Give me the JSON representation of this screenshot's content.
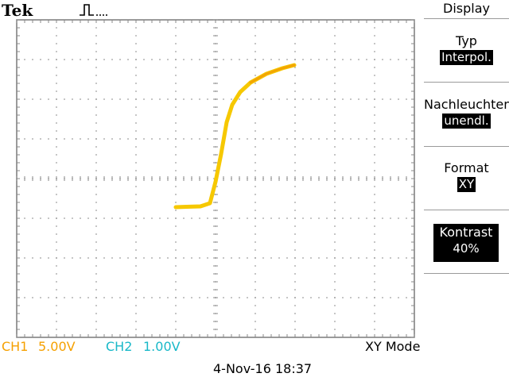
{
  "header": {
    "brand": "Tek",
    "acquisition_icon": "pulse-trigger-icon"
  },
  "menu": {
    "title": "Display",
    "items": [
      {
        "label": "Typ",
        "value": "Interpol."
      },
      {
        "label": "Nachleuchten",
        "value": "unendl."
      },
      {
        "label": "Format",
        "value": "XY"
      },
      {
        "label": "Kontrast",
        "value": "40%"
      }
    ]
  },
  "status": {
    "ch1": {
      "name": "CH1",
      "scale": "5.00V",
      "color": "#f5a000"
    },
    "ch2": {
      "name": "CH2",
      "scale": "1.00V",
      "color": "#18b8c8"
    },
    "mode": "XY Mode",
    "datetime": "4-Nov-16 18:37"
  },
  "trace": {
    "color": "#f6c800",
    "accent_color": "#f29a00"
  }
}
